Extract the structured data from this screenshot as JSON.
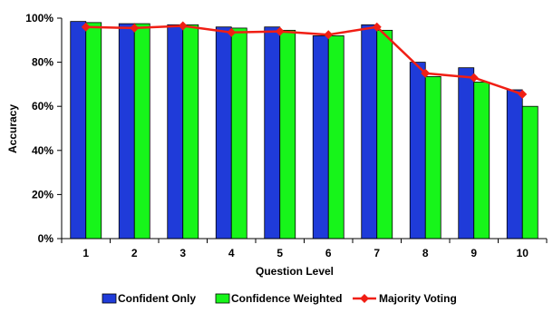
{
  "chart_data": {
    "type": "bar",
    "xlabel": "Question Level",
    "ylabel": "Accuracy",
    "categories": [
      "1",
      "2",
      "3",
      "4",
      "5",
      "6",
      "7",
      "8",
      "9",
      "10"
    ],
    "ylim": [
      0,
      100
    ],
    "y_ticks": [
      "0%",
      "20%",
      "40%",
      "60%",
      "80%",
      "100%"
    ],
    "y_tick_values": [
      0,
      20,
      40,
      60,
      80,
      100
    ],
    "grid": false,
    "legend_position": "bottom",
    "series": [
      {
        "name": "Confident Only",
        "kind": "bar",
        "color": "#1f3bd9",
        "values": [
          98.5,
          97.5,
          97,
          96,
          96,
          92,
          97,
          80,
          77.5,
          67.5
        ]
      },
      {
        "name": "Confidence Weighted",
        "kind": "bar",
        "color": "#17f51a",
        "values": [
          98,
          97.5,
          97,
          95.5,
          94.5,
          92,
          94.5,
          73.5,
          71,
          60
        ]
      },
      {
        "name": "Majority Voting",
        "kind": "line",
        "marker": "diamond",
        "color": "#f01e14",
        "values": [
          96,
          95.5,
          96.5,
          93.5,
          94,
          92.5,
          96,
          75,
          73,
          65.5
        ]
      }
    ]
  }
}
